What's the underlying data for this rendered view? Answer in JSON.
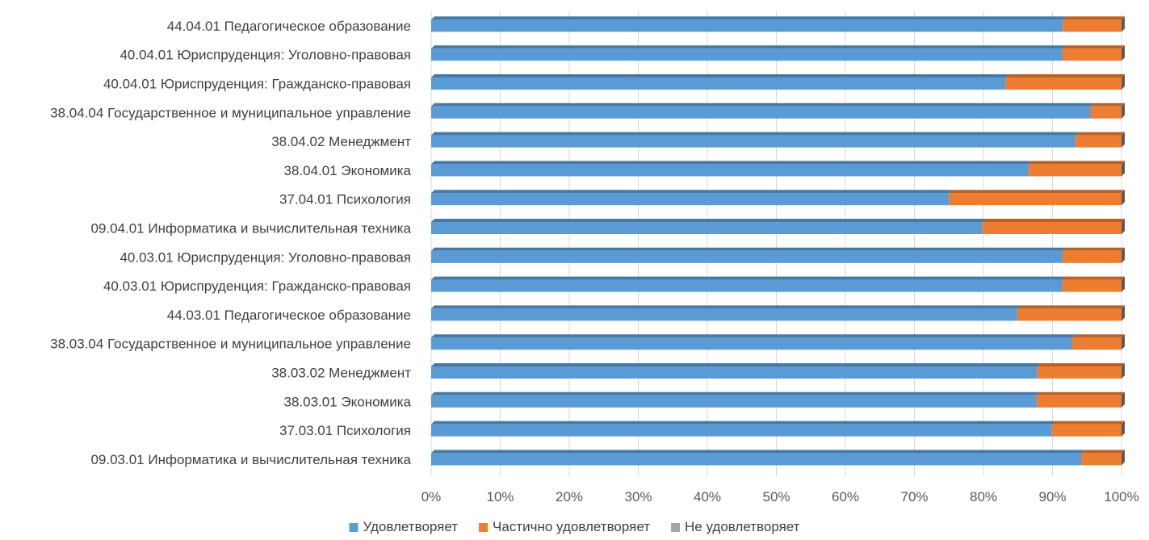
{
  "chart_data": {
    "type": "bar",
    "orientation": "horizontal",
    "stacked": "percent",
    "categories": [
      "44.04.01 Педагогическое образование",
      "40.04.01 Юриспруденция: Уголовно-правовая",
      "40.04.01 Юриспруденция: Гражданско-правовая",
      "38.04.04 Государственное и муниципальное управление",
      "38.04.02 Менеджмент",
      "38.04.01 Экономика",
      "37.04.01 Психология",
      "09.04.01 Информатика и вычислительная техника",
      "40.03.01 Юриспруденция: Уголовно-правовая",
      "40.03.01 Юриспруденция: Гражданско-правовая",
      "44.03.01 Педагогическое образование",
      "38.03.04 Государственное и муниципальное управление",
      "38.03.02 Менеджмент",
      "38.03.01 Экономика",
      "37.03.01 Психология",
      "09.03.01 Информатика и вычислительная техника"
    ],
    "series": [
      {
        "name": "Удовлетворяет",
        "color": "#5b9bd5",
        "values": [
          91.5,
          91.4,
          83.2,
          95.5,
          93.3,
          86.5,
          75.0,
          79.8,
          91.4,
          91.4,
          84.9,
          92.8,
          87.8,
          87.7,
          89.9,
          94.2
        ]
      },
      {
        "name": "Частично удовлетворяет",
        "color": "#ed7d31",
        "values": [
          8.5,
          8.6,
          16.8,
          4.5,
          6.7,
          13.5,
          25.0,
          20.2,
          8.6,
          8.6,
          15.1,
          7.2,
          12.2,
          12.3,
          10.1,
          5.8
        ]
      },
      {
        "name": "Не удовлетворяет",
        "color": "#a5a5a5",
        "values": [
          0,
          0,
          0,
          0,
          0,
          0,
          0,
          0,
          0,
          0,
          0,
          0,
          0,
          0,
          0,
          0
        ]
      }
    ],
    "x_ticks": [
      "0%",
      "10%",
      "20%",
      "30%",
      "40%",
      "50%",
      "60%",
      "70%",
      "80%",
      "90%",
      "100%"
    ],
    "xlim": [
      0,
      100
    ],
    "grid": true,
    "legend_position": "bottom"
  }
}
